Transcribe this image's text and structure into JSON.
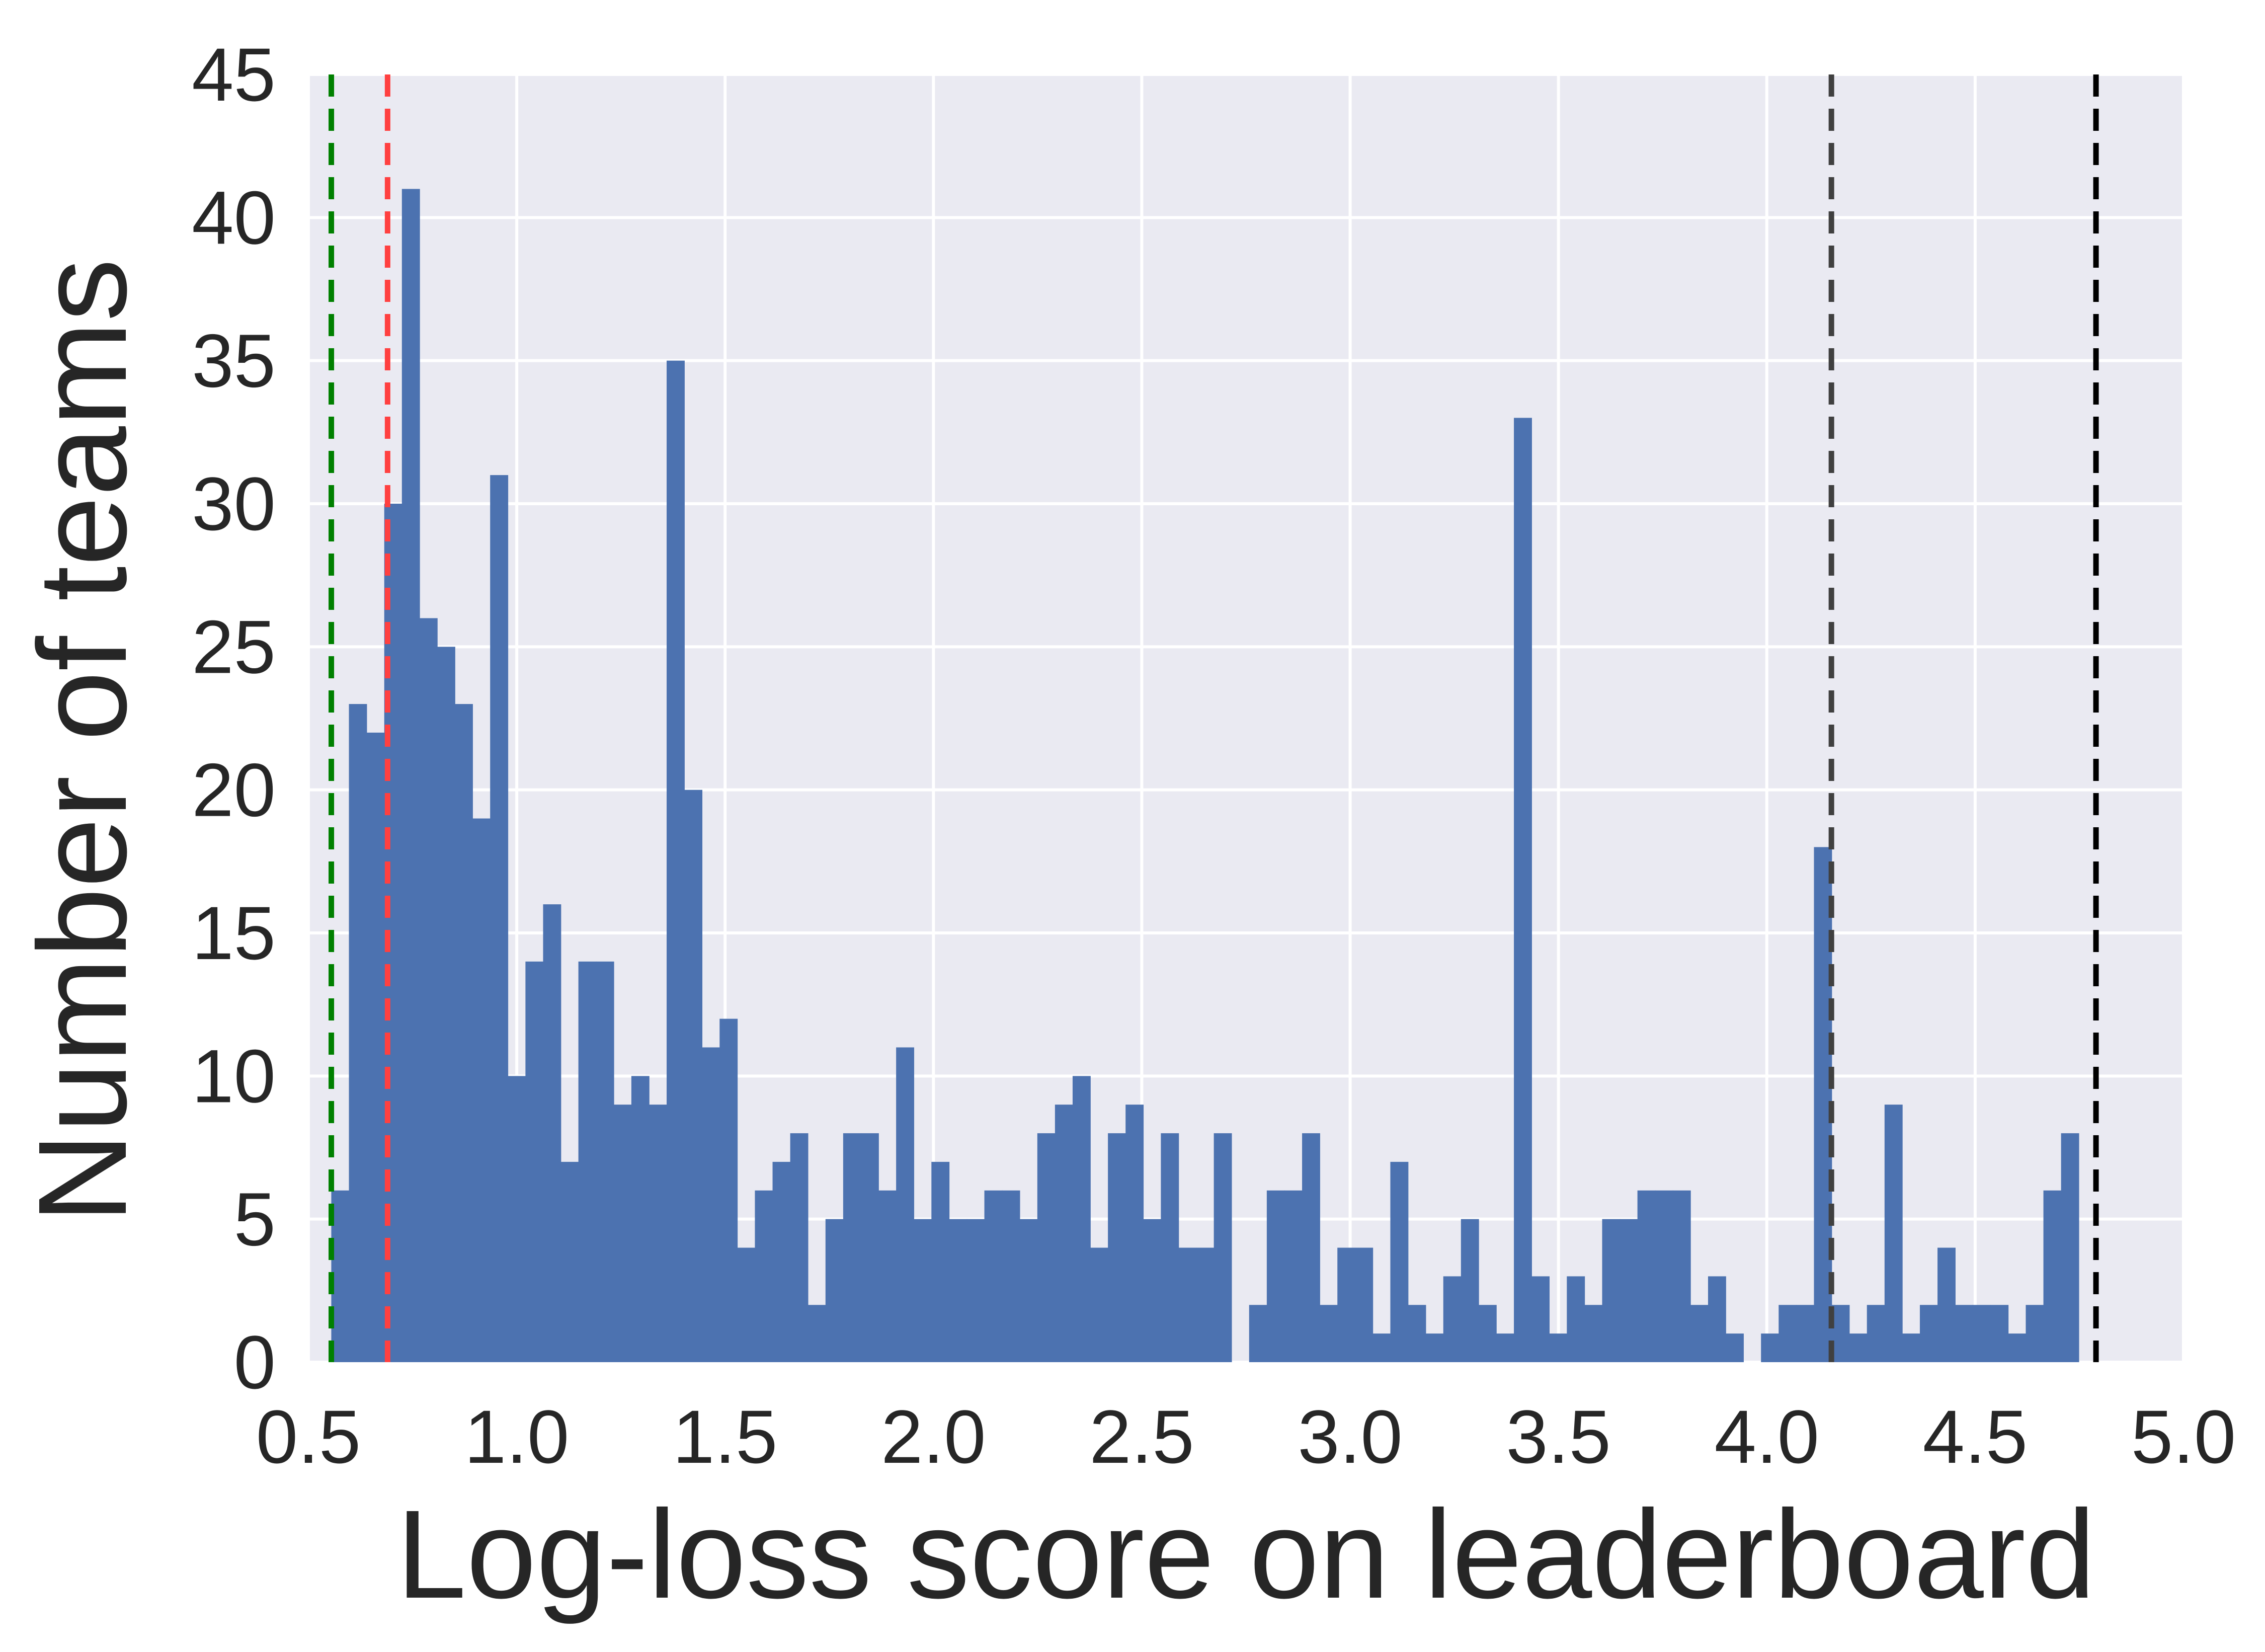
{
  "chart_data": {
    "type": "bar",
    "title": "",
    "xlabel": "Log-loss score on leaderboard",
    "ylabel": "Number of teams",
    "xlim": [
      0.5,
      5.0
    ],
    "ylim": [
      0,
      45
    ],
    "xticks": [
      "0.5",
      "1.0",
      "1.5",
      "2.0",
      "2.5",
      "3.0",
      "3.5",
      "4.0",
      "4.5",
      "5.0"
    ],
    "yticks": [
      "0",
      "5",
      "10",
      "15",
      "20",
      "25",
      "30",
      "35",
      "40",
      "45"
    ],
    "grid": true,
    "colors": {
      "bars": "#4c72b0",
      "background": "#eaeaf2",
      "grid": "#ffffff"
    },
    "bin_start": 0.5549,
    "bin_width": 0.04236,
    "counts": [
      6,
      23,
      22,
      30,
      41,
      26,
      25,
      23,
      19,
      31,
      10,
      14,
      16,
      7,
      14,
      14,
      9,
      10,
      9,
      35,
      20,
      11,
      12,
      4,
      6,
      7,
      8,
      2,
      5,
      8,
      8,
      6,
      11,
      5,
      7,
      5,
      5,
      6,
      6,
      5,
      8,
      9,
      10,
      4,
      8,
      9,
      5,
      8,
      4,
      4,
      8,
      0,
      2,
      6,
      6,
      8,
      2,
      4,
      4,
      1,
      7,
      2,
      1,
      3,
      5,
      2,
      1,
      33,
      3,
      1,
      3,
      2,
      5,
      5,
      6,
      6,
      6,
      2,
      3,
      1,
      0,
      1,
      2,
      2,
      18,
      2,
      1,
      2,
      9,
      1,
      2,
      4,
      2,
      2,
      2,
      1,
      2,
      6,
      8
    ],
    "reference_lines": [
      {
        "x": 0.555,
        "color": "#008000",
        "style": "dashed"
      },
      {
        "x": 0.69,
        "color": "#ff4040",
        "style": "dashed"
      },
      {
        "x": 4.155,
        "color": "#404040",
        "style": "dashed"
      },
      {
        "x": 4.79,
        "color": "#000000",
        "style": "dashed"
      }
    ]
  }
}
